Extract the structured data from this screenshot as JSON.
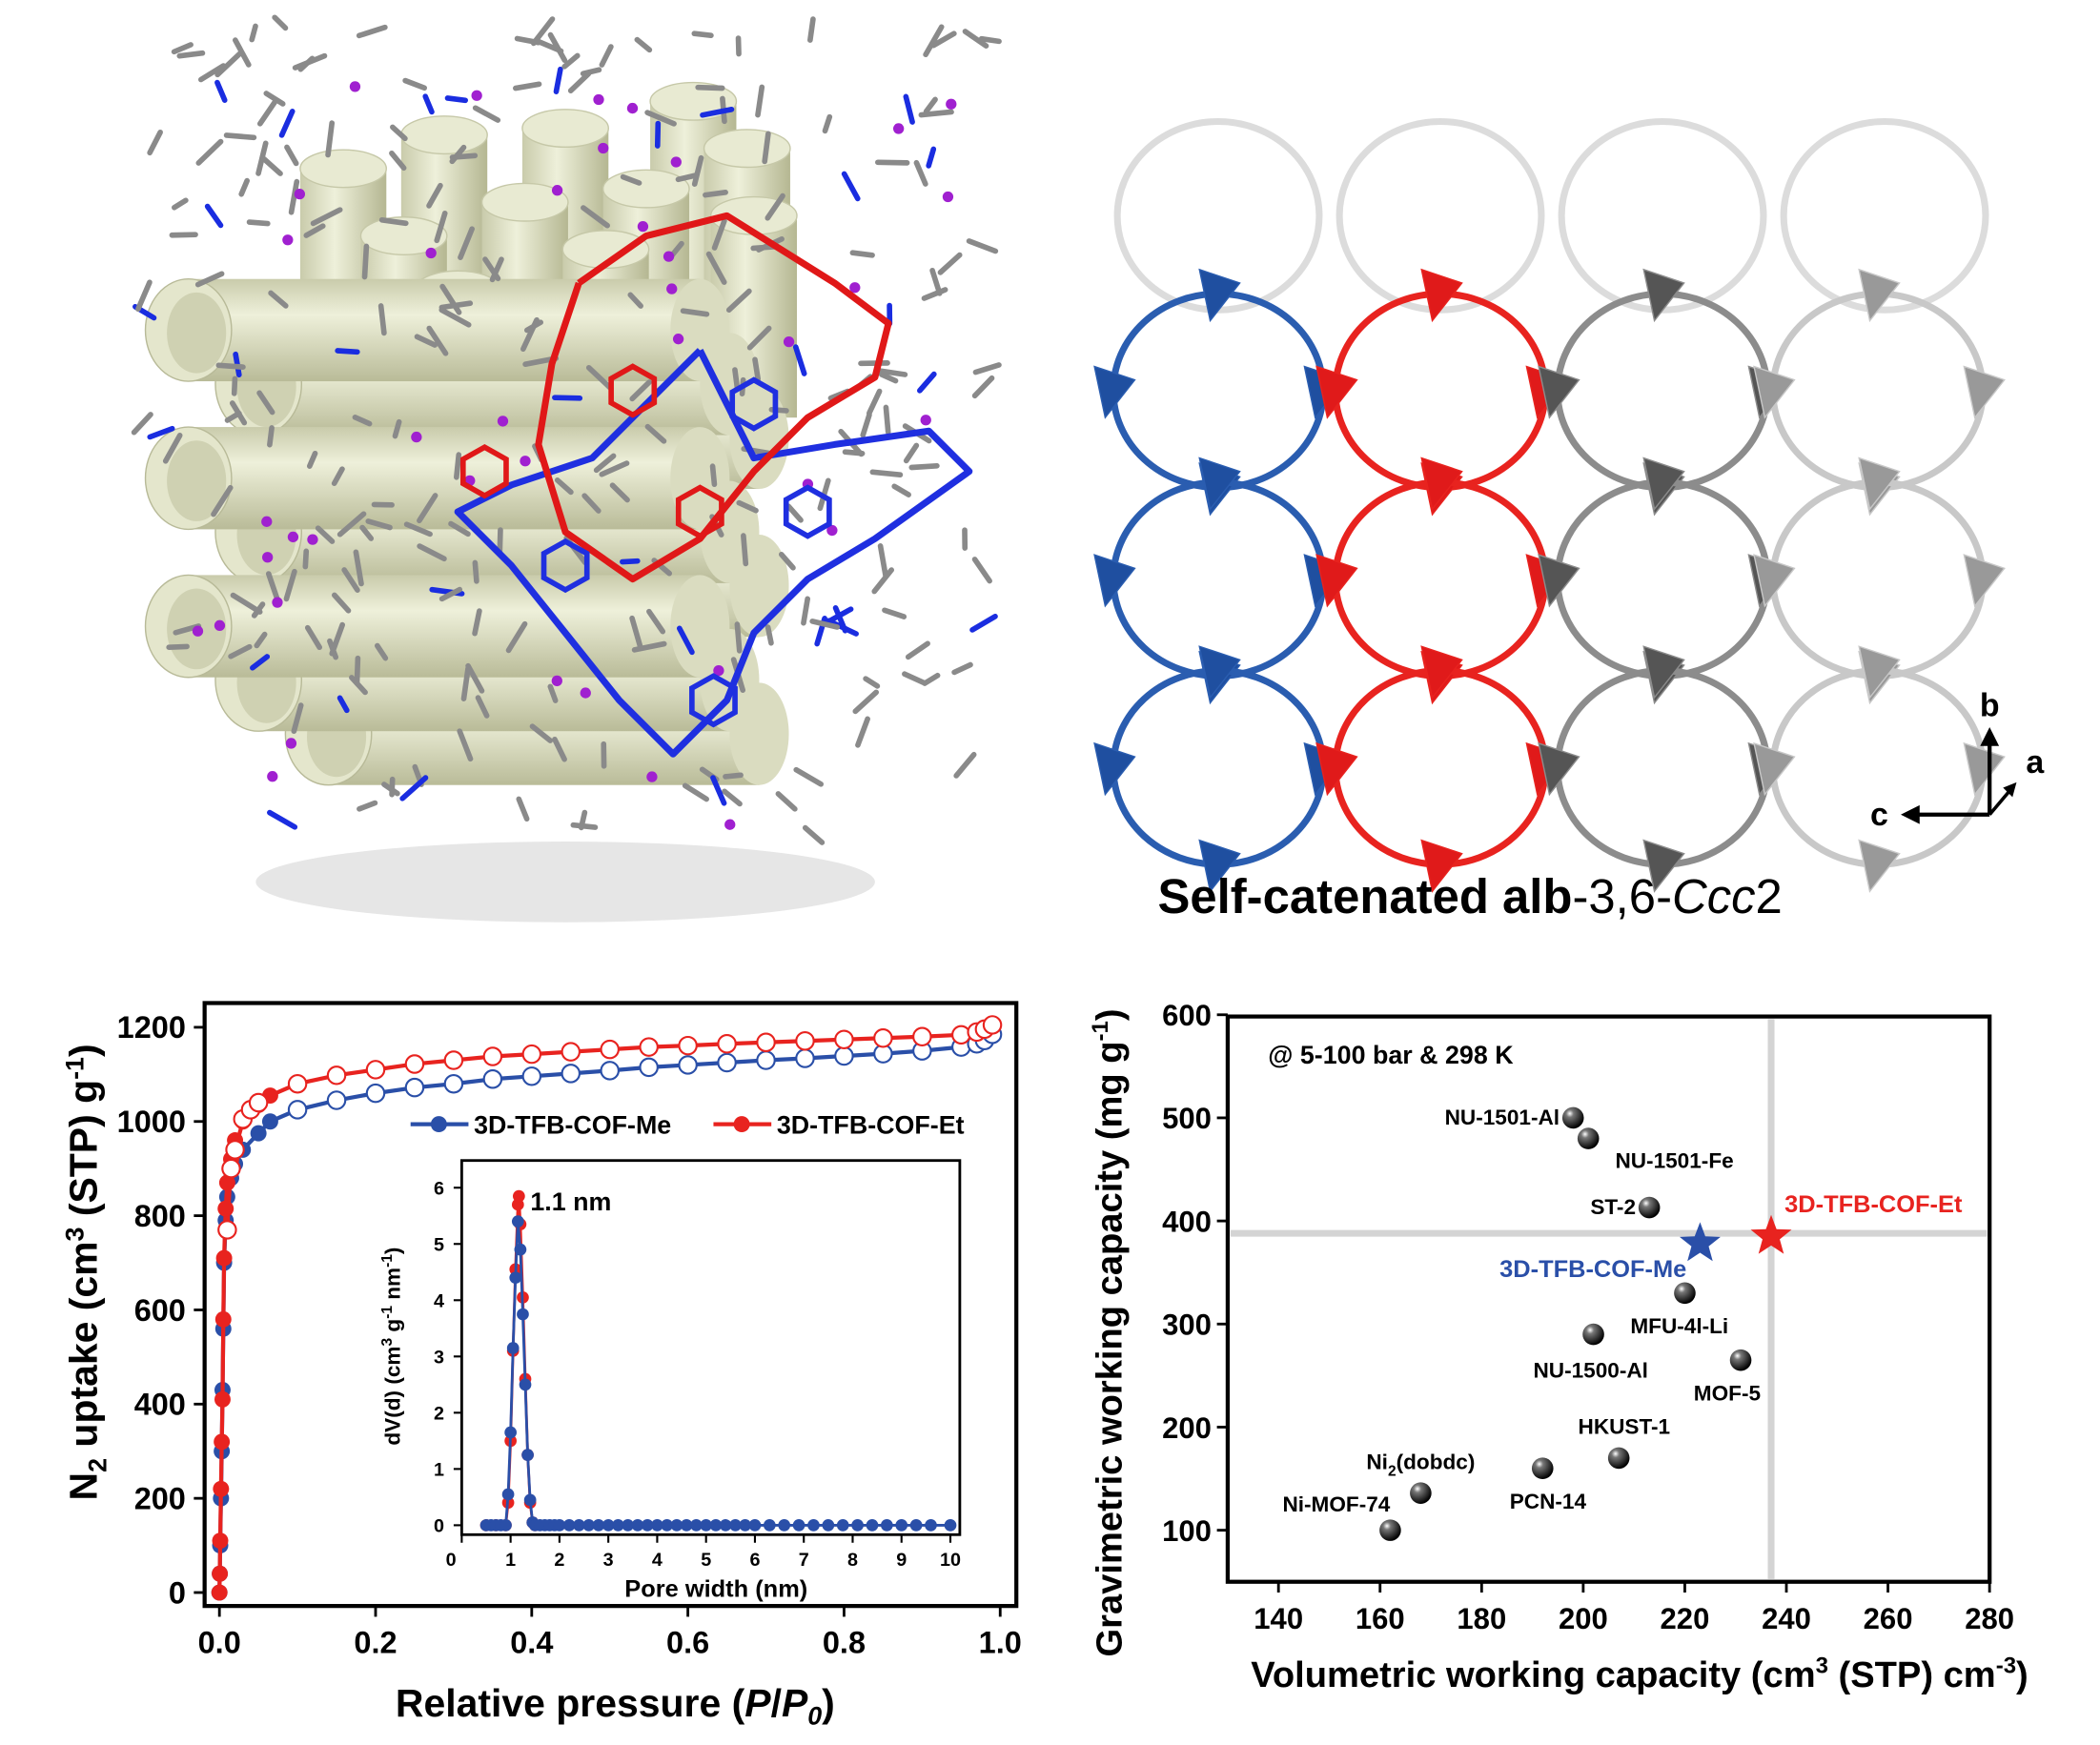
{
  "structure_panel": {
    "title_bold": "Self-catenated ",
    "title_alb": "alb",
    "title_rest": "-3,6-",
    "title_italic": "Ccc",
    "title_end": "2",
    "axis_b": "b",
    "axis_a": "a",
    "axis_c": "c",
    "colors": {
      "net_a": "#2a5db0",
      "net_b": "#e8231f",
      "net_other": "#9a9a9a",
      "pore": "#dfe1c6"
    }
  },
  "chart_data": [
    {
      "type": "line",
      "title": "",
      "xlabel_main": "Relative pressure (",
      "xlabel_p": "P",
      "xlabel_slash": "/",
      "xlabel_p0": "P",
      "xlabel_sub0": "0",
      "xlabel_close": ")",
      "ylabel_n": "N",
      "ylabel_sub2": "2",
      "ylabel_mid": " uptake (cm",
      "ylabel_sup3": "3",
      "ylabel_stp": " (STP) g",
      "ylabel_sup": "-1",
      "ylabel_end": ")",
      "xlim": [
        0,
        1.0
      ],
      "ylim": [
        0,
        1200
      ],
      "xticks": [
        "0.0",
        "0.2",
        "0.4",
        "0.6",
        "0.8",
        "1.0"
      ],
      "yticks": [
        "0",
        "200",
        "400",
        "600",
        "800",
        "1000",
        "1200"
      ],
      "legend_position": "top-right",
      "series": [
        {
          "name": "3D-TFB-COF-Me",
          "color": "#2a4fa8",
          "adsorption": [
            [
              0,
              0
            ],
            [
              0.0005,
              40
            ],
            [
              0.001,
              100
            ],
            [
              0.002,
              200
            ],
            [
              0.003,
              300
            ],
            [
              0.004,
              430
            ],
            [
              0.005,
              560
            ],
            [
              0.006,
              700
            ],
            [
              0.008,
              790
            ],
            [
              0.01,
              840
            ],
            [
              0.015,
              880
            ],
            [
              0.02,
              910
            ],
            [
              0.03,
              940
            ],
            [
              0.05,
              975
            ],
            [
              0.065,
              1000
            ]
          ],
          "desorption": [
            [
              0.1,
              1025
            ],
            [
              0.15,
              1045
            ],
            [
              0.2,
              1060
            ],
            [
              0.25,
              1072
            ],
            [
              0.3,
              1080
            ],
            [
              0.35,
              1090
            ],
            [
              0.4,
              1096
            ],
            [
              0.45,
              1102
            ],
            [
              0.5,
              1108
            ],
            [
              0.55,
              1115
            ],
            [
              0.6,
              1120
            ],
            [
              0.65,
              1125
            ],
            [
              0.7,
              1130
            ],
            [
              0.75,
              1134
            ],
            [
              0.8,
              1139
            ],
            [
              0.85,
              1144
            ],
            [
              0.9,
              1150
            ],
            [
              0.95,
              1158
            ],
            [
              0.97,
              1165
            ],
            [
              0.98,
              1172
            ],
            [
              0.99,
              1185
            ]
          ]
        },
        {
          "name": "3D-TFB-COF-Et",
          "color": "#e8231f",
          "adsorption": [
            [
              0,
              0
            ],
            [
              0.0005,
              40
            ],
            [
              0.001,
              110
            ],
            [
              0.002,
              220
            ],
            [
              0.003,
              320
            ],
            [
              0.004,
              410
            ],
            [
              0.005,
              580
            ],
            [
              0.006,
              710
            ],
            [
              0.008,
              815
            ],
            [
              0.01,
              870
            ],
            [
              0.015,
              920
            ],
            [
              0.02,
              960
            ],
            [
              0.03,
              1000
            ],
            [
              0.05,
              1035
            ],
            [
              0.065,
              1055
            ]
          ],
          "desorption": [
            [
              0.01,
              770
            ],
            [
              0.015,
              900
            ],
            [
              0.02,
              940
            ],
            [
              0.03,
              1005
            ],
            [
              0.04,
              1025
            ],
            [
              0.05,
              1040
            ],
            [
              0.1,
              1080
            ],
            [
              0.15,
              1098
            ],
            [
              0.2,
              1110
            ],
            [
              0.25,
              1122
            ],
            [
              0.3,
              1130
            ],
            [
              0.35,
              1138
            ],
            [
              0.4,
              1143
            ],
            [
              0.45,
              1148
            ],
            [
              0.5,
              1153
            ],
            [
              0.55,
              1158
            ],
            [
              0.6,
              1161
            ],
            [
              0.65,
              1165
            ],
            [
              0.7,
              1168
            ],
            [
              0.75,
              1171
            ],
            [
              0.8,
              1174
            ],
            [
              0.85,
              1177
            ],
            [
              0.9,
              1180
            ],
            [
              0.95,
              1184
            ],
            [
              0.97,
              1190
            ],
            [
              0.98,
              1196
            ],
            [
              0.99,
              1205
            ]
          ]
        }
      ]
    },
    {
      "type": "line",
      "inset": true,
      "xlabel": "Pore width (nm)",
      "ylabel_a": "dV(d) (cm",
      "ylabel_sup3": "3",
      "ylabel_b": " g",
      "ylabel_sup1": "-1",
      "ylabel_c": " nm",
      "ylabel_sup1b": "-1",
      "ylabel_d": ")",
      "annotation": "1.1 nm",
      "xlim": [
        0,
        10.2
      ],
      "ylim": [
        0,
        6.5
      ],
      "xticks": [
        "0",
        "1",
        "2",
        "3",
        "4",
        "5",
        "6",
        "7",
        "8",
        "9",
        "10"
      ],
      "yticks": [
        "0",
        "1",
        "2",
        "3",
        "4",
        "5",
        "6"
      ],
      "series": [
        {
          "name": "3D-TFB-COF-Me",
          "color": "#2a4fa8",
          "points": [
            [
              0.5,
              0
            ],
            [
              0.6,
              0
            ],
            [
              0.7,
              0
            ],
            [
              0.8,
              0
            ],
            [
              0.9,
              0
            ],
            [
              0.95,
              0.55
            ],
            [
              1.0,
              1.65
            ],
            [
              1.05,
              3.15
            ],
            [
              1.1,
              4.4
            ],
            [
              1.15,
              5.4
            ],
            [
              1.2,
              4.9
            ],
            [
              1.25,
              3.75
            ],
            [
              1.3,
              2.5
            ],
            [
              1.35,
              1.25
            ],
            [
              1.4,
              0.45
            ],
            [
              1.45,
              0.05
            ],
            [
              1.5,
              0
            ],
            [
              1.6,
              0
            ],
            [
              1.7,
              0
            ],
            [
              1.8,
              0
            ],
            [
              1.9,
              0
            ],
            [
              2.0,
              0
            ],
            [
              2.2,
              0
            ],
            [
              2.4,
              0
            ],
            [
              2.6,
              0
            ],
            [
              2.8,
              0
            ],
            [
              3.0,
              0
            ],
            [
              3.2,
              0
            ],
            [
              3.4,
              0
            ],
            [
              3.6,
              0
            ],
            [
              3.8,
              0
            ],
            [
              4.0,
              0
            ],
            [
              4.2,
              0
            ],
            [
              4.4,
              0
            ],
            [
              4.6,
              0
            ],
            [
              4.8,
              0
            ],
            [
              5.0,
              0
            ],
            [
              5.2,
              0
            ],
            [
              5.4,
              0
            ],
            [
              5.6,
              0
            ],
            [
              5.8,
              0
            ],
            [
              6.0,
              0
            ],
            [
              6.3,
              0
            ],
            [
              6.6,
              0
            ],
            [
              6.9,
              0
            ],
            [
              7.2,
              0
            ],
            [
              7.5,
              0
            ],
            [
              7.8,
              0
            ],
            [
              8.1,
              0
            ],
            [
              8.4,
              0
            ],
            [
              8.7,
              0
            ],
            [
              9.0,
              0
            ],
            [
              9.3,
              0
            ],
            [
              9.6,
              0
            ],
            [
              10.0,
              0
            ]
          ]
        },
        {
          "name": "3D-TFB-COF-Et",
          "color": "#e8231f",
          "points": [
            [
              0.5,
              0
            ],
            [
              0.7,
              0
            ],
            [
              0.9,
              0
            ],
            [
              0.95,
              0.4
            ],
            [
              1.0,
              1.5
            ],
            [
              1.05,
              3.1
            ],
            [
              1.1,
              4.55
            ],
            [
              1.15,
              5.7
            ],
            [
              1.17,
              5.85
            ],
            [
              1.2,
              5.35
            ],
            [
              1.25,
              4.05
            ],
            [
              1.3,
              2.6
            ],
            [
              1.35,
              1.25
            ],
            [
              1.4,
              0.4
            ],
            [
              1.45,
              0.05
            ],
            [
              1.5,
              0
            ]
          ]
        }
      ]
    },
    {
      "type": "scatter",
      "annotation": "@ 5-100 bar & 298 K",
      "xlabel_a": "Volumetric working capacity (cm",
      "xlabel_sup3": "3",
      "xlabel_b": " (STP) cm",
      "xlabel_sup": "-3",
      "xlabel_c": ")",
      "ylabel_a": "Gravimetric working capacity (mg g",
      "ylabel_sup": "-1",
      "ylabel_c": ")",
      "xlim": [
        130,
        280
      ],
      "ylim": [
        50,
        600
      ],
      "xticks": [
        "140",
        "160",
        "180",
        "200",
        "220",
        "240",
        "260",
        "280"
      ],
      "yticks": [
        "100",
        "200",
        "300",
        "400",
        "500",
        "600"
      ],
      "reference_lines": {
        "x": 237,
        "y": 388
      },
      "points": [
        {
          "label": "NU-1501-Al",
          "x": 198,
          "y": 500
        },
        {
          "label": "NU-1501-Fe",
          "x": 201,
          "y": 480
        },
        {
          "label": "ST-2",
          "x": 213,
          "y": 413
        },
        {
          "label": "MFU-4l-Li",
          "x": 220,
          "y": 330
        },
        {
          "label": "NU-1500-Al",
          "x": 202,
          "y": 290
        },
        {
          "label": "MOF-5",
          "x": 231,
          "y": 265
        },
        {
          "label": "HKUST-1",
          "x": 207,
          "y": 170
        },
        {
          "label": "PCN-14",
          "x": 192,
          "y": 160
        },
        {
          "label_main": "Ni",
          "label_sub": "2",
          "label_rest": "(dobdc)",
          "x": 168,
          "y": 136
        },
        {
          "label": "Ni-MOF-74",
          "x": 162,
          "y": 100
        }
      ],
      "highlights": [
        {
          "label": "3D-TFB-COF-Me",
          "x": 223,
          "y": 378,
          "color": "#2a4fa8"
        },
        {
          "label": "3D-TFB-COF-Et",
          "x": 237,
          "y": 385,
          "color": "#e8231f"
        }
      ]
    }
  ]
}
